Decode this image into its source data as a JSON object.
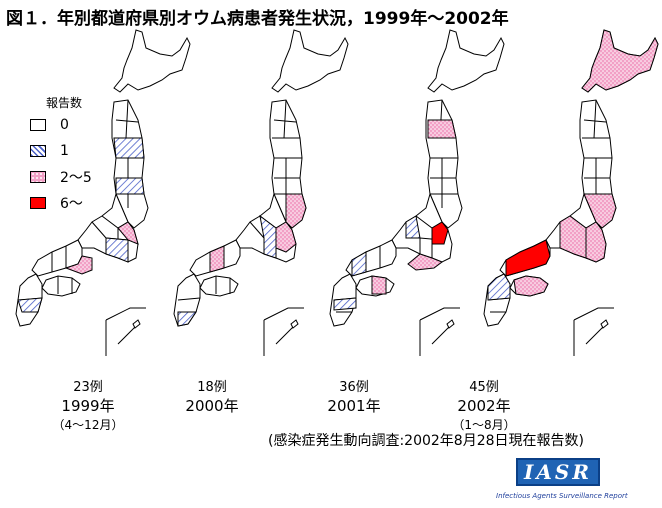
{
  "title": "図１．年別都道府県別オウム病患者発生状況，1999年～2002年",
  "legend": {
    "title": "報告数",
    "items": [
      {
        "label": "0",
        "fill": "white"
      },
      {
        "label": "1",
        "fill": "hatch"
      },
      {
        "label": "2～5",
        "fill": "dots"
      },
      {
        "label": "6～",
        "fill": "red"
      }
    ]
  },
  "colors": {
    "hatch": "#4a5fc8",
    "dots_bg": "#f2a0c6",
    "dots_fg": "#ffffff",
    "red": "#ff0000",
    "outline": "#000000",
    "logo": "#1f63b4"
  },
  "panels": [
    {
      "count": "23例",
      "year": "1999年",
      "period": "（4～12月）"
    },
    {
      "count": "18例",
      "year": "2000年",
      "period": ""
    },
    {
      "count": "36例",
      "year": "2001年",
      "period": ""
    },
    {
      "count": "45例",
      "year": "2002年",
      "period": "（1～8月）"
    }
  ],
  "source": "(感染症発生動向調査:2002年8月28日現在報告数)",
  "logo": {
    "text": "IASR",
    "subtitle": "Infectious Agents Surveillance Report"
  }
}
